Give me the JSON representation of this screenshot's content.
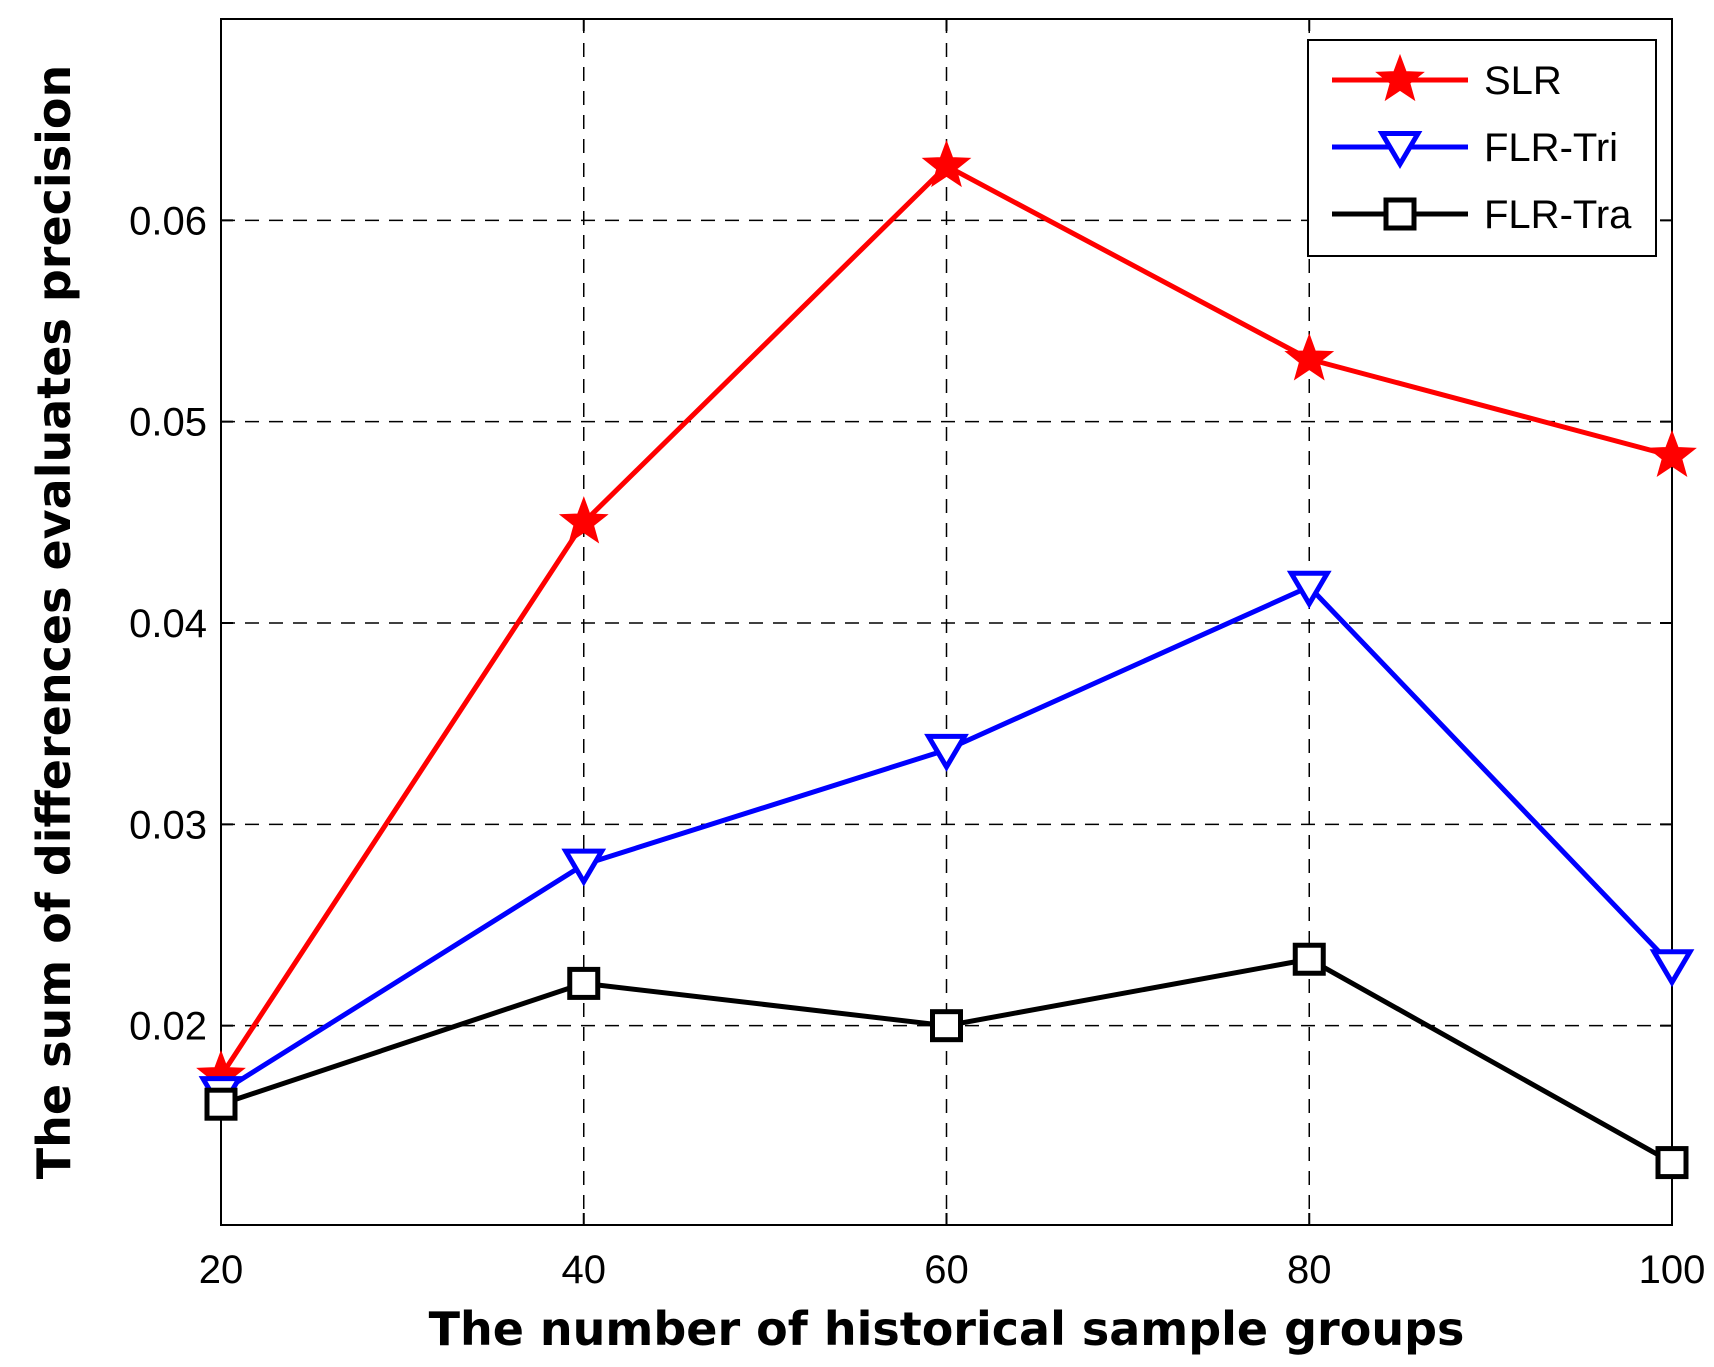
{
  "chart_data": {
    "type": "line",
    "title": "",
    "xlabel": "The number of historical sample groups",
    "ylabel": "The sum of differences evaluates precision",
    "x": [
      20,
      40,
      60,
      80,
      100
    ],
    "x_ticks": [
      "20",
      "40",
      "60",
      "80",
      "100"
    ],
    "y_ticks": [
      "0.02",
      "0.03",
      "0.04",
      "0.05",
      "0.06"
    ],
    "y_tick_values": [
      0.02,
      0.03,
      0.04,
      0.05,
      0.06
    ],
    "xlim": [
      20,
      100
    ],
    "ylim": [
      0.0101,
      0.07
    ],
    "grid": true,
    "legend_position": "top-right",
    "series": [
      {
        "name": "SLR",
        "color": "#ff0000",
        "marker": "star",
        "values": [
          0.0175,
          0.045,
          0.0627,
          0.0531,
          0.0483
        ]
      },
      {
        "name": "FLR-Tri",
        "color": "#0000ff",
        "marker": "triangle-down",
        "values": [
          0.0167,
          0.028,
          0.0337,
          0.0418,
          0.023
        ]
      },
      {
        "name": "FLR-Tra",
        "color": "#000000",
        "marker": "square",
        "values": [
          0.0161,
          0.0221,
          0.02,
          0.0233,
          0.0132
        ]
      }
    ]
  }
}
